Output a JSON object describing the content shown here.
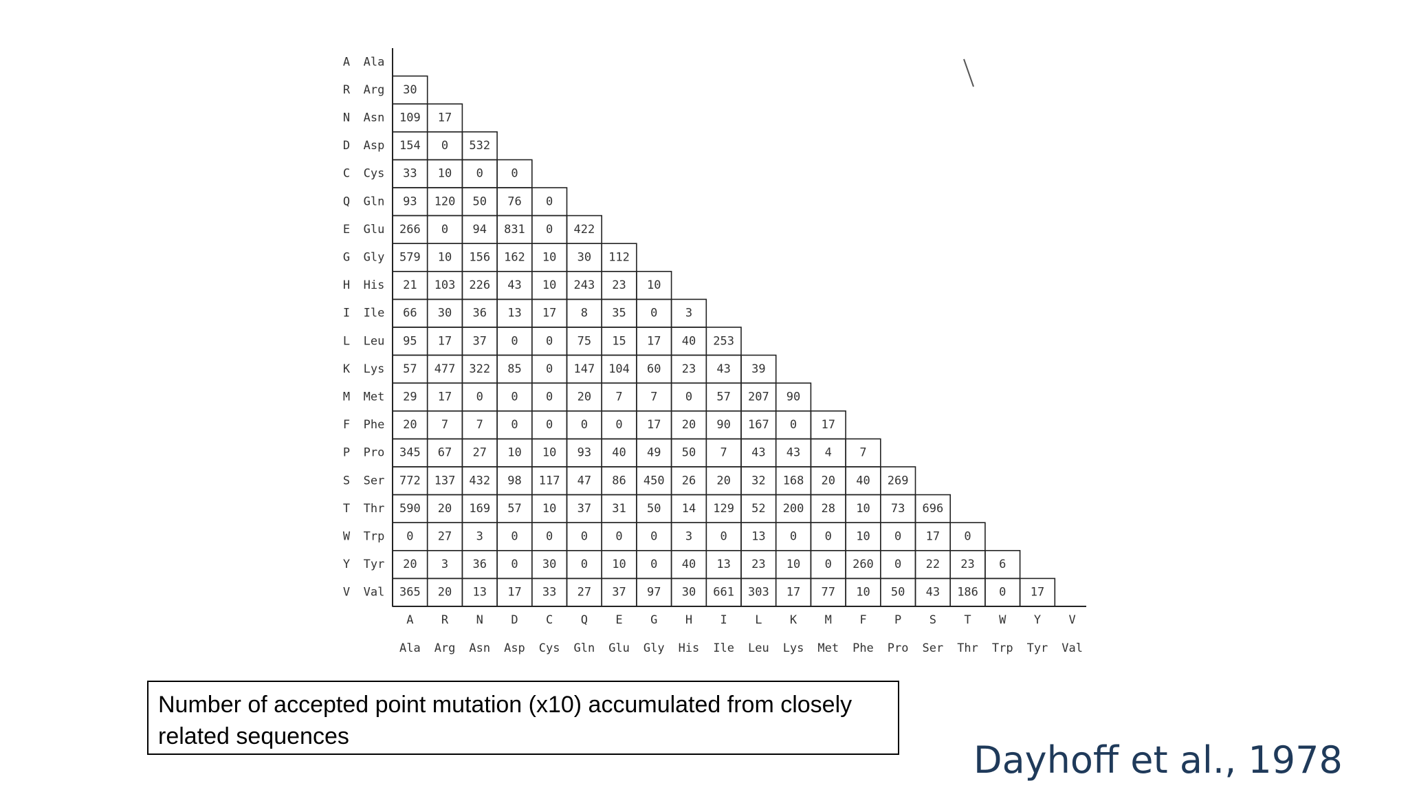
{
  "rows": [
    {
      "code": "A",
      "name": "Ala",
      "values": []
    },
    {
      "code": "R",
      "name": "Arg",
      "values": [
        30
      ]
    },
    {
      "code": "N",
      "name": "Asn",
      "values": [
        109,
        17
      ]
    },
    {
      "code": "D",
      "name": "Asp",
      "values": [
        154,
        0,
        532
      ]
    },
    {
      "code": "C",
      "name": "Cys",
      "values": [
        33,
        10,
        0,
        0
      ]
    },
    {
      "code": "Q",
      "name": "Gln",
      "values": [
        93,
        120,
        50,
        76,
        0
      ]
    },
    {
      "code": "E",
      "name": "Glu",
      "values": [
        266,
        0,
        94,
        831,
        0,
        422
      ]
    },
    {
      "code": "G",
      "name": "Gly",
      "values": [
        579,
        10,
        156,
        162,
        10,
        30,
        112
      ]
    },
    {
      "code": "H",
      "name": "His",
      "values": [
        21,
        103,
        226,
        43,
        10,
        243,
        23,
        10
      ]
    },
    {
      "code": "I",
      "name": "Ile",
      "values": [
        66,
        30,
        36,
        13,
        17,
        8,
        35,
        0,
        3
      ]
    },
    {
      "code": "L",
      "name": "Leu",
      "values": [
        95,
        17,
        37,
        0,
        0,
        75,
        15,
        17,
        40,
        253
      ]
    },
    {
      "code": "K",
      "name": "Lys",
      "values": [
        57,
        477,
        322,
        85,
        0,
        147,
        104,
        60,
        23,
        43,
        39
      ]
    },
    {
      "code": "M",
      "name": "Met",
      "values": [
        29,
        17,
        0,
        0,
        0,
        20,
        7,
        7,
        0,
        57,
        207,
        90
      ]
    },
    {
      "code": "F",
      "name": "Phe",
      "values": [
        20,
        7,
        7,
        0,
        0,
        0,
        0,
        17,
        20,
        90,
        167,
        0,
        17
      ]
    },
    {
      "code": "P",
      "name": "Pro",
      "values": [
        345,
        67,
        27,
        10,
        10,
        93,
        40,
        49,
        50,
        7,
        43,
        43,
        4,
        7
      ]
    },
    {
      "code": "S",
      "name": "Ser",
      "values": [
        772,
        137,
        432,
        98,
        117,
        47,
        86,
        450,
        26,
        20,
        32,
        168,
        20,
        40,
        269
      ]
    },
    {
      "code": "T",
      "name": "Thr",
      "values": [
        590,
        20,
        169,
        57,
        10,
        37,
        31,
        50,
        14,
        129,
        52,
        200,
        28,
        10,
        73,
        696
      ]
    },
    {
      "code": "W",
      "name": "Trp",
      "values": [
        0,
        27,
        3,
        0,
        0,
        0,
        0,
        0,
        3,
        0,
        13,
        0,
        0,
        10,
        0,
        17,
        0
      ]
    },
    {
      "code": "Y",
      "name": "Tyr",
      "values": [
        20,
        3,
        36,
        0,
        30,
        0,
        10,
        0,
        40,
        13,
        23,
        10,
        0,
        260,
        0,
        22,
        23,
        6
      ]
    },
    {
      "code": "V",
      "name": "Val",
      "values": [
        365,
        20,
        13,
        17,
        33,
        27,
        37,
        97,
        30,
        661,
        303,
        17,
        77,
        10,
        50,
        43,
        186,
        0,
        17
      ]
    }
  ],
  "columns": [
    {
      "code": "A",
      "name": "Ala"
    },
    {
      "code": "R",
      "name": "Arg"
    },
    {
      "code": "N",
      "name": "Asn"
    },
    {
      "code": "D",
      "name": "Asp"
    },
    {
      "code": "C",
      "name": "Cys"
    },
    {
      "code": "Q",
      "name": "Gln"
    },
    {
      "code": "E",
      "name": "Glu"
    },
    {
      "code": "G",
      "name": "Gly"
    },
    {
      "code": "H",
      "name": "His"
    },
    {
      "code": "I",
      "name": "Ile"
    },
    {
      "code": "L",
      "name": "Leu"
    },
    {
      "code": "K",
      "name": "Lys"
    },
    {
      "code": "M",
      "name": "Met"
    },
    {
      "code": "F",
      "name": "Phe"
    },
    {
      "code": "P",
      "name": "Pro"
    },
    {
      "code": "S",
      "name": "Ser"
    },
    {
      "code": "T",
      "name": "Thr"
    },
    {
      "code": "W",
      "name": "Trp"
    },
    {
      "code": "Y",
      "name": "Tyr"
    },
    {
      "code": "V",
      "name": "Val"
    }
  ],
  "caption": "Number of accepted point mutation (x10) accumulated from closely related sequences",
  "citation": "Dayhoff et al., 1978"
}
